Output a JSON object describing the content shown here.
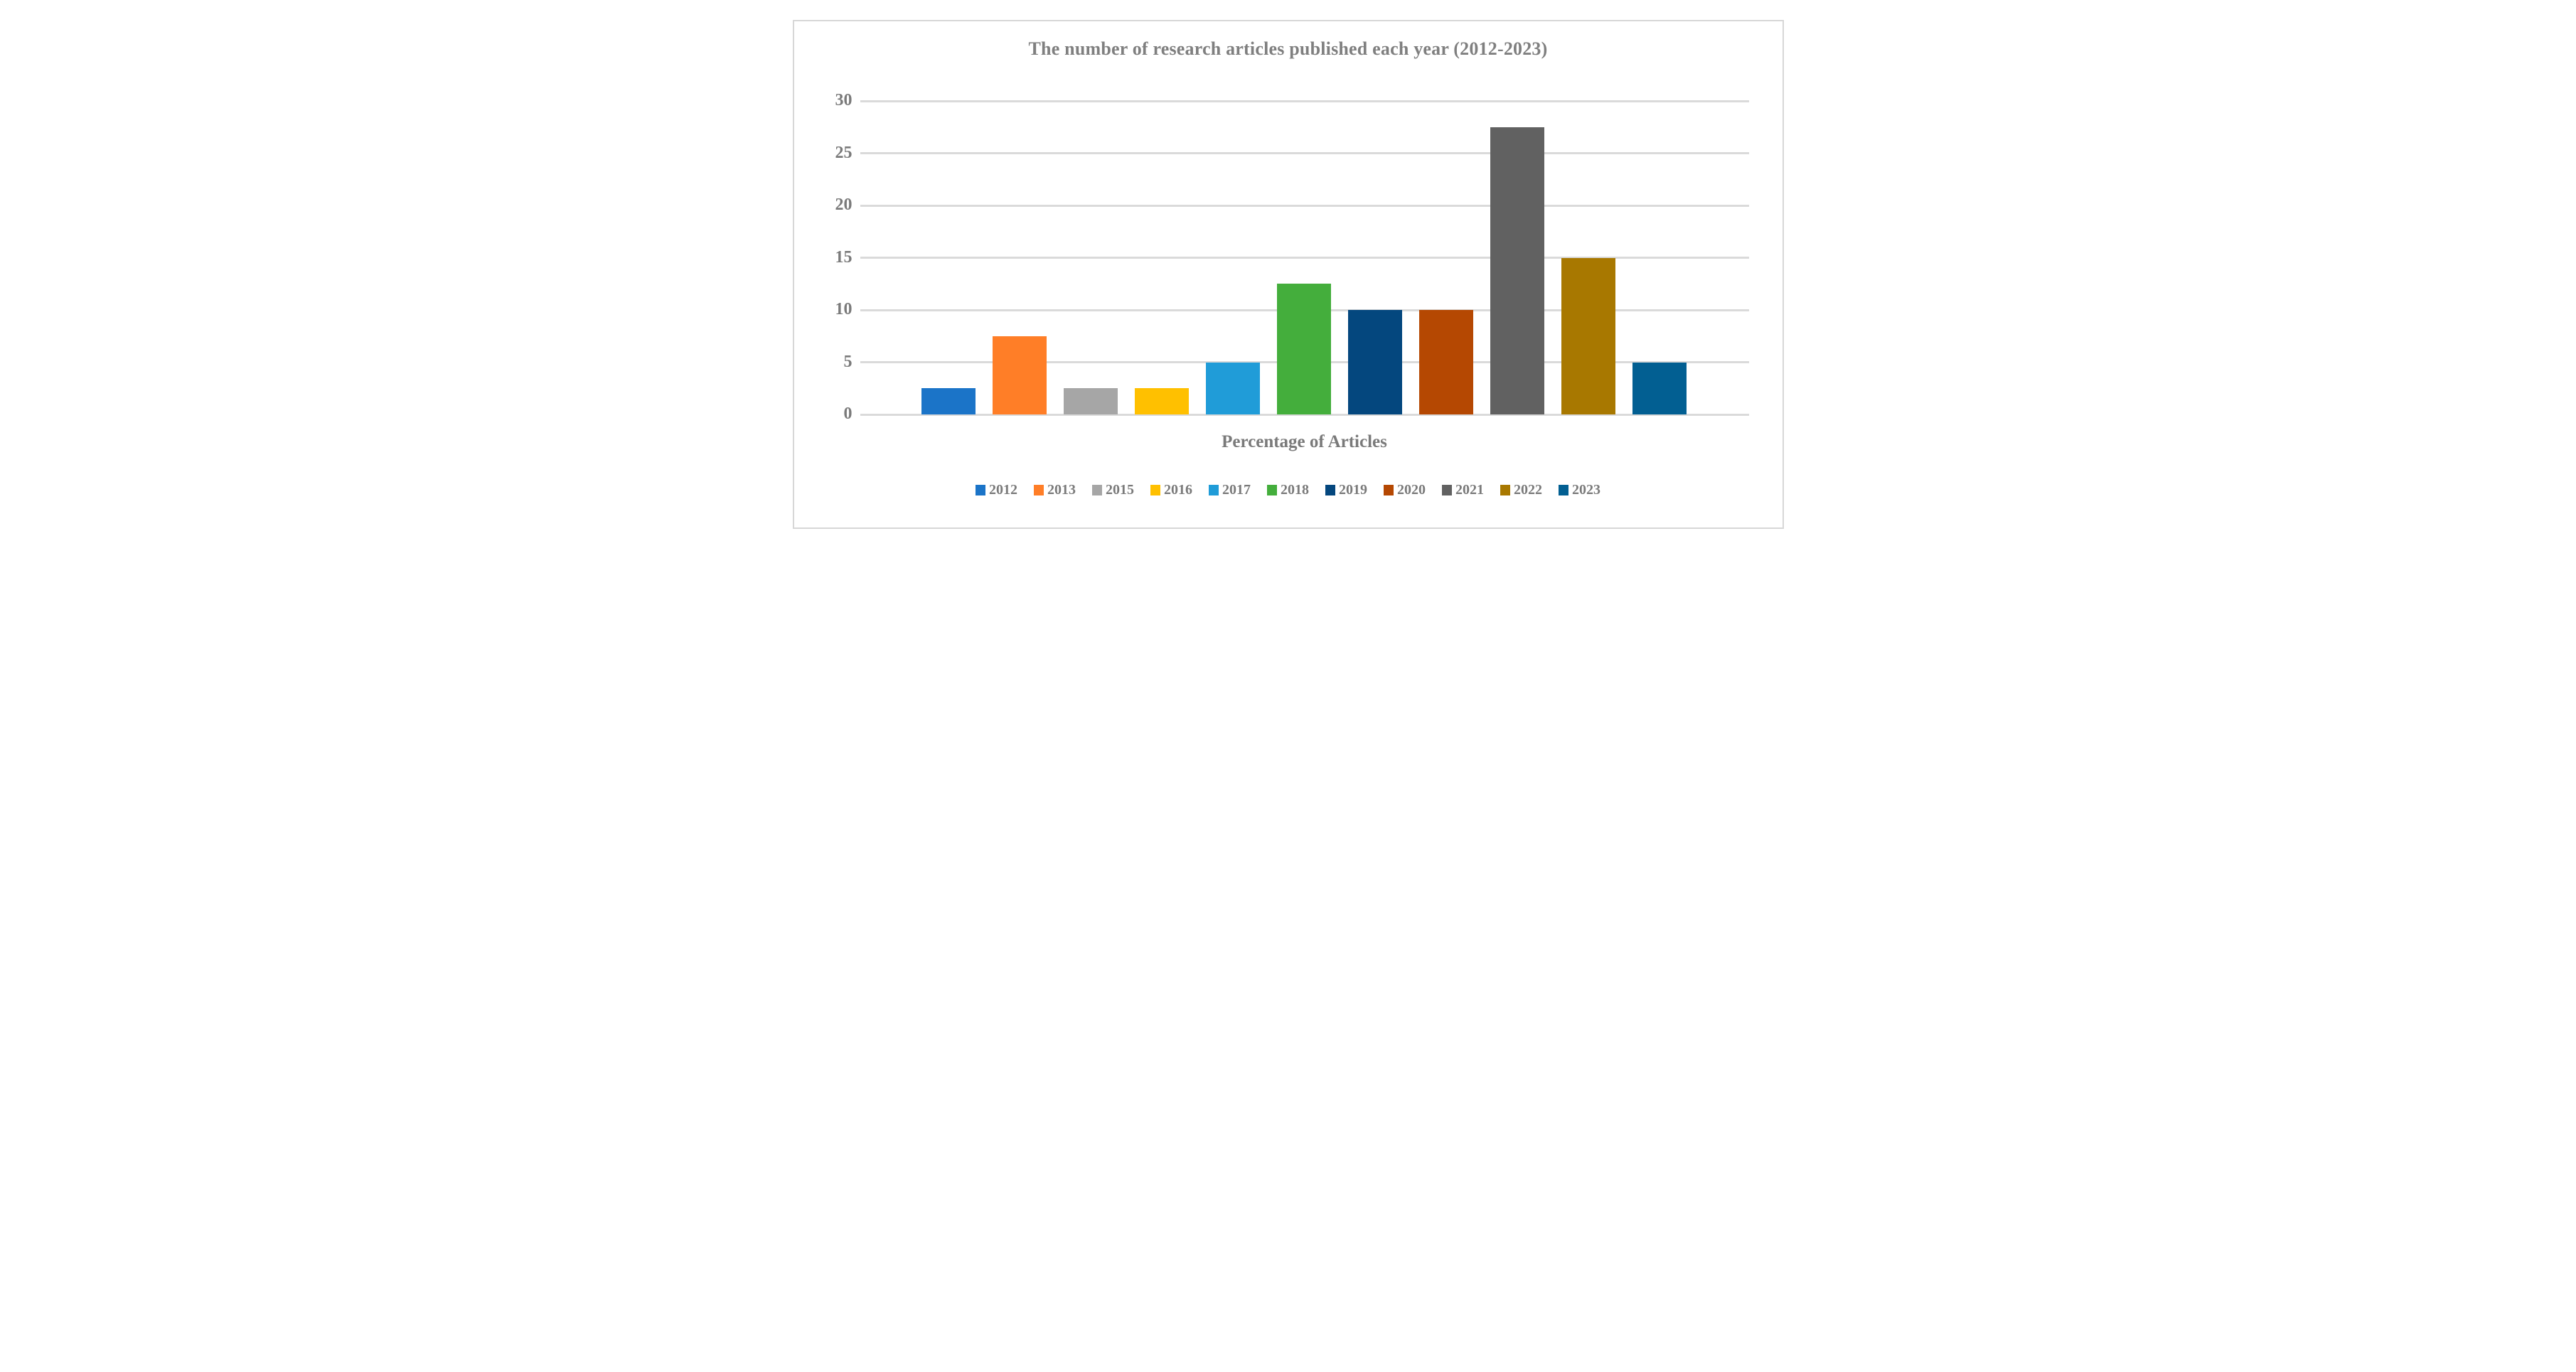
{
  "chart_data": {
    "type": "bar",
    "title": "The number of research articles published each year (2012-2023)",
    "xlabel": "Percentage of Articles",
    "ylabel": "",
    "categories": [
      "2012",
      "2013",
      "2015",
      "2016",
      "2017",
      "2018",
      "2019",
      "2020",
      "2021",
      "2022",
      "2023"
    ],
    "values": [
      2.5,
      7.5,
      2.5,
      2.5,
      5,
      12.5,
      10,
      10,
      27.5,
      15,
      5
    ],
    "bar_colors": [
      "#1b74c8",
      "#ff7e27",
      "#a6a6a6",
      "#ffc000",
      "#209cd8",
      "#44ae3c",
      "#04477e",
      "#b54802",
      "#616161",
      "#a87800",
      "#025f92"
    ],
    "ylim": [
      0,
      30
    ],
    "yticks": [
      0,
      5,
      10,
      15,
      20,
      25,
      30
    ],
    "grid": true,
    "legend_position": "bottom",
    "legend_entries": [
      "2012",
      "2013",
      "2015",
      "2016",
      "2017",
      "2018",
      "2019",
      "2020",
      "2021",
      "2022",
      "2023"
    ]
  },
  "styles": {
    "text_color": "#7a7a7a",
    "gridline_color": "#dadada",
    "frame_border_color": "#d7d7d7",
    "background": "#ffffff"
  }
}
